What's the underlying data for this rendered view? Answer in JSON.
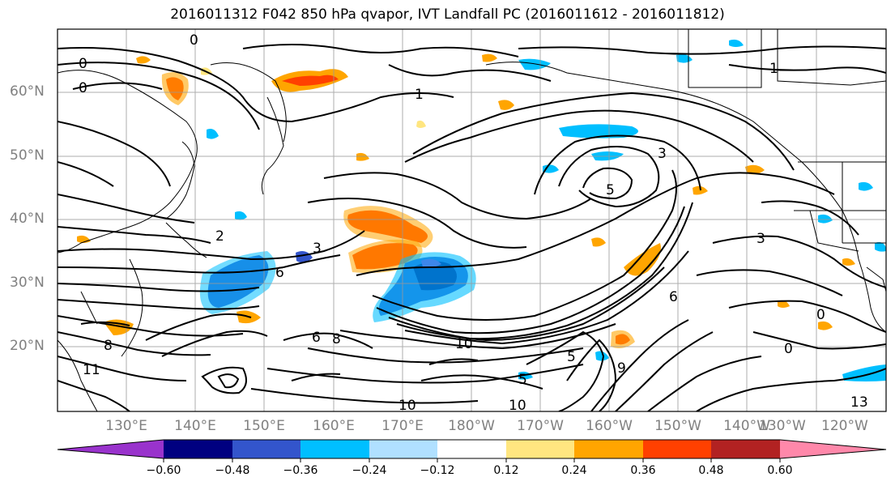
{
  "title": "2016011312 F042 850 hPa qvapor, IVT Landfall PC (2016011612 - 2016011812)",
  "map": {
    "lat_labels": [
      "60°N",
      "50°N",
      "40°N",
      "30°N",
      "20°N"
    ],
    "lon_labels": [
      "130°E",
      "140°E",
      "150°E",
      "160°E",
      "170°E",
      "180°W",
      "170°W",
      "160°W",
      "150°W",
      "140°W",
      "130°W",
      "120°W"
    ],
    "contour_labels": [
      "0",
      "0",
      "0",
      "1",
      "1",
      "2",
      "3",
      "3",
      "3",
      "5",
      "6",
      "6",
      "8",
      "8",
      "10",
      "10",
      "11",
      "13",
      "0",
      "0",
      "9",
      "6",
      "10",
      "5",
      "5"
    ]
  },
  "colorbar": {
    "tick_labels": [
      "−0.60",
      "−0.48",
      "−0.36",
      "−0.24",
      "−0.12",
      "0.12",
      "0.24",
      "0.36",
      "0.48",
      "0.60"
    ],
    "colors": [
      "#9933cc",
      "#000080",
      "#3355cc",
      "#00bfff",
      "#b0e0ff",
      "#ffffff",
      "#ffe680",
      "#ffa500",
      "#ff4000",
      "#b22222",
      "#ff88aa"
    ]
  }
}
